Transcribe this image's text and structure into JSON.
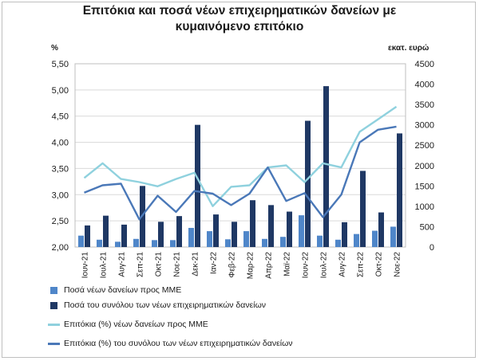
{
  "chart_data": {
    "type": "bar+line",
    "title_line1": "Επιτόκια και ποσά νέων επιχειρηματικών δανείων με",
    "title_line2": "κυμαινόμενο επιτόκιο",
    "left_axis_label": "%",
    "right_axis_label": "εκατ. ευρώ",
    "categories": [
      "Ιουν-21",
      "Ιουλ-21",
      "Αυγ-21",
      "Σεπ-21",
      "Οκτ-21",
      "Νοε-21",
      "Δεκ-21",
      "Ιαν-22",
      "Φεβ-22",
      "Μαρ-22",
      "Απρ-22",
      "Μαϊ-22",
      "Ιουν-22",
      "Ιουλ-22",
      "Αυγ-22",
      "Σεπ-22",
      "Οκτ-22",
      "Νοε-22"
    ],
    "left_axis": {
      "min": 2.0,
      "max": 5.5,
      "ticks": [
        "2,00",
        "2,50",
        "3,00",
        "3,50",
        "4,00",
        "4,50",
        "5,00",
        "5,50"
      ]
    },
    "right_axis": {
      "min": 0,
      "max": 4500,
      "ticks": [
        "0",
        "500",
        "1000",
        "1500",
        "2000",
        "2500",
        "3000",
        "3500",
        "4000",
        "4500"
      ]
    },
    "grid": true,
    "legend_position": "bottom",
    "series": [
      {
        "name": "Ποσά νέων δανείων προς ΜΜΕ",
        "type": "bar",
        "axis": "right",
        "color": "#4f86c9",
        "values": [
          280,
          180,
          130,
          200,
          170,
          170,
          470,
          390,
          190,
          390,
          200,
          250,
          780,
          280,
          180,
          320,
          400,
          500
        ]
      },
      {
        "name": "Ποσά του συνόλου των νέων επιχειρηματικών δανείων",
        "type": "bar",
        "axis": "right",
        "color": "#1f3864",
        "values": [
          530,
          770,
          550,
          1500,
          620,
          760,
          3000,
          800,
          620,
          1150,
          1030,
          870,
          3100,
          3950,
          610,
          1870,
          850,
          2790
        ]
      },
      {
        "name": "Επιτόκια (%) νέων δανείων προς ΜΜΕ",
        "type": "line",
        "axis": "left",
        "color": "#8fd1de",
        "values": [
          3.32,
          3.6,
          3.3,
          3.24,
          3.16,
          3.3,
          3.42,
          2.78,
          3.15,
          3.18,
          3.52,
          3.56,
          3.24,
          3.6,
          3.52,
          4.2,
          4.44,
          4.68
        ]
      },
      {
        "name": "Επιτόκια (%) του συνόλου των νέων επιχειρηματικών δανείων",
        "type": "line",
        "axis": "left",
        "color": "#4a78b8",
        "values": [
          3.04,
          3.18,
          3.21,
          2.53,
          2.98,
          2.67,
          3.07,
          3.02,
          2.8,
          3.02,
          3.52,
          2.88,
          3.03,
          2.57,
          3.0,
          4.0,
          4.24,
          4.3
        ]
      }
    ]
  }
}
